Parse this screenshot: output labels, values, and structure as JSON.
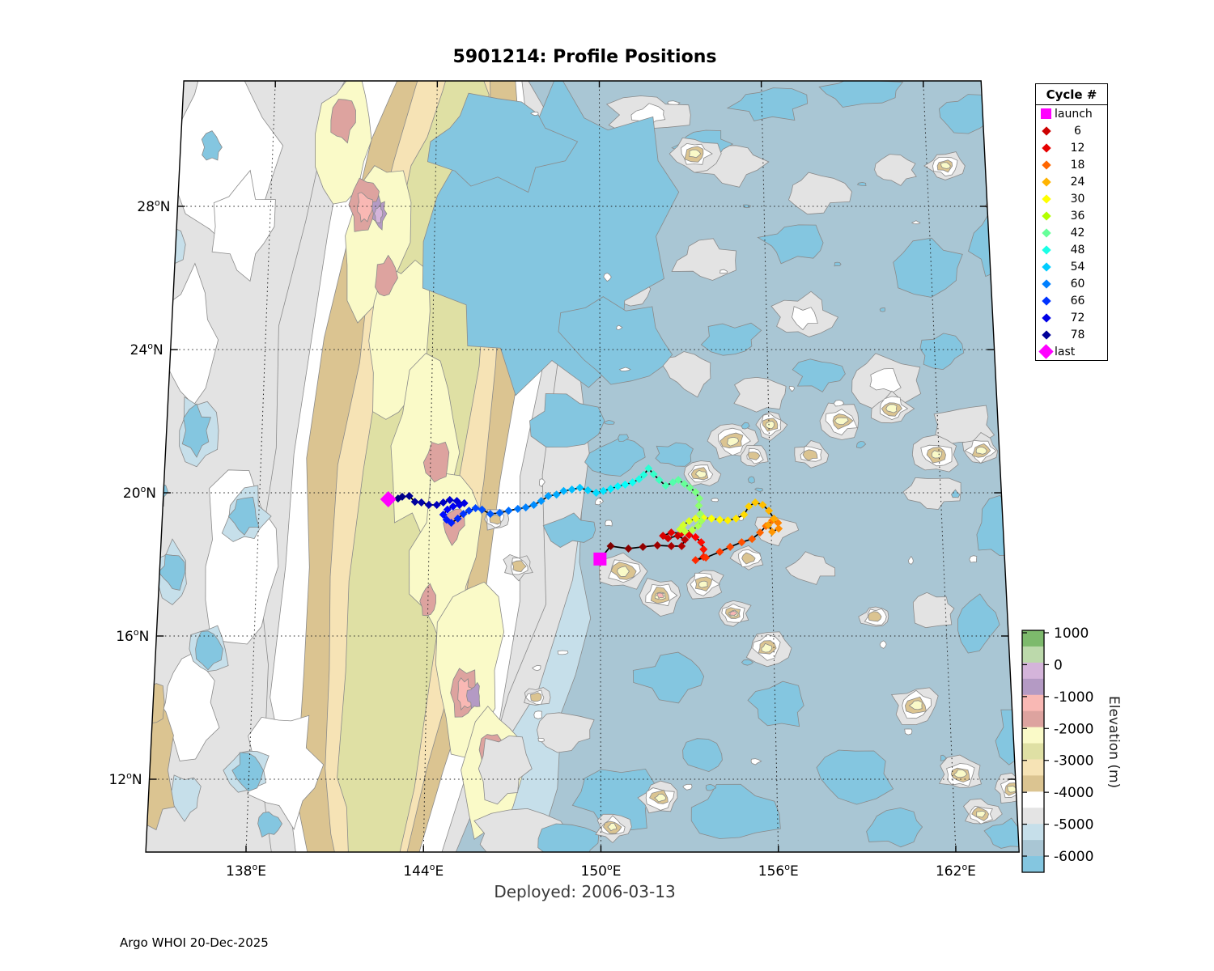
{
  "title": "5901214: Profile Positions",
  "deployed": "Deployed: 2006-03-13",
  "credit": "Argo WHOI 20-Dec-2025",
  "axes": {
    "lon_ticks": [
      {
        "deg": 138,
        "label": "138",
        "hemi": "E"
      },
      {
        "deg": 144,
        "label": "144",
        "hemi": "E"
      },
      {
        "deg": 150,
        "label": "150",
        "hemi": "E"
      },
      {
        "deg": 156,
        "label": "156",
        "hemi": "E"
      },
      {
        "deg": 162,
        "label": "162",
        "hemi": "E"
      }
    ],
    "lat_ticks": [
      {
        "deg": 28,
        "label": "28",
        "hemi": "N"
      },
      {
        "deg": 24,
        "label": "24",
        "hemi": "N"
      },
      {
        "deg": 20,
        "label": "20",
        "hemi": "N"
      },
      {
        "deg": 16,
        "label": "16",
        "hemi": "N"
      },
      {
        "deg": 12,
        "label": "12",
        "hemi": "N"
      }
    ]
  },
  "legend": {
    "title": "Cycle #",
    "entries": [
      {
        "label": "launch",
        "marker": "square",
        "color": "#ff00ff"
      },
      {
        "label": "6",
        "marker": "diamond",
        "color": "#cc0000"
      },
      {
        "label": "12",
        "marker": "diamond",
        "color": "#e60000"
      },
      {
        "label": "18",
        "marker": "diamond",
        "color": "#ff6600"
      },
      {
        "label": "24",
        "marker": "diamond",
        "color": "#ffb300"
      },
      {
        "label": "30",
        "marker": "diamond",
        "color": "#ffff00"
      },
      {
        "label": "36",
        "marker": "diamond",
        "color": "#b3ff00"
      },
      {
        "label": "42",
        "marker": "diamond",
        "color": "#66ff99"
      },
      {
        "label": "48",
        "marker": "diamond",
        "color": "#1affe5"
      },
      {
        "label": "54",
        "marker": "diamond",
        "color": "#00ccff"
      },
      {
        "label": "60",
        "marker": "diamond",
        "color": "#0080ff"
      },
      {
        "label": "66",
        "marker": "diamond",
        "color": "#0033ff"
      },
      {
        "label": "72",
        "marker": "diamond",
        "color": "#0000e6"
      },
      {
        "label": "78",
        "marker": "diamond",
        "color": "#000099"
      },
      {
        "label": "last",
        "marker": "diamond-large",
        "color": "#ff00ff"
      }
    ]
  },
  "colorbar": {
    "label": "Elevation (m)",
    "tick_labels": [
      "1000",
      "0",
      "-1000",
      "-2000",
      "-3000",
      "-4000",
      "-5000",
      "-6000"
    ],
    "segment_colors": [
      "#7dba6c",
      "#bcd9ab",
      "#d4b4da",
      "#b49ac4",
      "#f9b8b4",
      "#dda39f",
      "#fafac8",
      "#dfe0a4",
      "#f6e3b5",
      "#dbc491",
      "#ffffff",
      "#e4e4e4",
      "#c6dfea",
      "#a9c6d4",
      "#84c6e0"
    ]
  },
  "chart_data": {
    "type": "map-trajectory",
    "float_id": "5901214",
    "deployed_date": "2006-03-13",
    "lon_range": [
      134.6,
      164.1
    ],
    "lat_range": [
      10.0,
      31.5
    ],
    "grid_lons": [
      138,
      144,
      150,
      156,
      162
    ],
    "grid_lats": [
      12,
      16,
      20,
      24,
      28
    ],
    "launch": {
      "lon": 149.97,
      "lat": 18.15
    },
    "last": {
      "lon": 142.81,
      "lat": 19.82
    },
    "marker_colormap": "jet-reversed",
    "track": [
      [
        150.33,
        18.51
      ],
      [
        150.93,
        18.44
      ],
      [
        151.42,
        18.49
      ],
      [
        151.91,
        18.53
      ],
      [
        152.38,
        18.51
      ],
      [
        152.73,
        18.51
      ],
      [
        152.84,
        18.69
      ],
      [
        152.6,
        18.8
      ],
      [
        152.27,
        18.73
      ],
      [
        152.1,
        18.8
      ],
      [
        152.38,
        18.89
      ],
      [
        152.73,
        18.87
      ],
      [
        152.98,
        18.82
      ],
      [
        153.2,
        18.76
      ],
      [
        153.39,
        18.62
      ],
      [
        153.47,
        18.42
      ],
      [
        153.47,
        18.21
      ],
      [
        153.2,
        18.12
      ],
      [
        153.55,
        18.19
      ],
      [
        154.02,
        18.35
      ],
      [
        154.37,
        18.49
      ],
      [
        154.76,
        18.62
      ],
      [
        155.11,
        18.71
      ],
      [
        155.38,
        18.89
      ],
      [
        155.58,
        19.07
      ],
      [
        155.79,
        19.23
      ],
      [
        155.99,
        19.16
      ],
      [
        156.01,
        19.0
      ],
      [
        155.79,
        18.91
      ],
      [
        155.66,
        19.1
      ],
      [
        155.85,
        19.28
      ],
      [
        155.68,
        19.5
      ],
      [
        155.47,
        19.66
      ],
      [
        155.22,
        19.73
      ],
      [
        155.0,
        19.62
      ],
      [
        154.84,
        19.39
      ],
      [
        154.57,
        19.28
      ],
      [
        154.29,
        19.23
      ],
      [
        154.02,
        19.25
      ],
      [
        153.74,
        19.28
      ],
      [
        153.47,
        19.3
      ],
      [
        153.2,
        19.28
      ],
      [
        152.98,
        19.21
      ],
      [
        152.79,
        19.1
      ],
      [
        152.68,
        18.98
      ],
      [
        152.84,
        18.92
      ],
      [
        153.09,
        18.96
      ],
      [
        153.28,
        19.07
      ],
      [
        153.39,
        19.21
      ],
      [
        153.36,
        19.41
      ],
      [
        153.31,
        19.64
      ],
      [
        153.33,
        19.84
      ],
      [
        153.2,
        20.02
      ],
      [
        153.01,
        20.14
      ],
      [
        152.82,
        20.25
      ],
      [
        152.62,
        20.36
      ],
      [
        152.43,
        20.29
      ],
      [
        152.19,
        20.2
      ],
      [
        151.97,
        20.36
      ],
      [
        151.78,
        20.52
      ],
      [
        151.61,
        20.68
      ],
      [
        151.45,
        20.5
      ],
      [
        151.29,
        20.38
      ],
      [
        151.07,
        20.29
      ],
      [
        150.82,
        20.23
      ],
      [
        150.57,
        20.18
      ],
      [
        150.33,
        20.11
      ],
      [
        150.08,
        20.05
      ],
      [
        149.84,
        20.0
      ],
      [
        149.56,
        20.07
      ],
      [
        149.29,
        20.14
      ],
      [
        149.02,
        20.09
      ],
      [
        148.74,
        20.05
      ],
      [
        148.5,
        19.95
      ],
      [
        148.22,
        19.91
      ],
      [
        147.98,
        19.77
      ],
      [
        147.73,
        19.66
      ],
      [
        147.46,
        19.59
      ],
      [
        147.19,
        19.55
      ],
      [
        146.88,
        19.5
      ],
      [
        146.58,
        19.44
      ],
      [
        146.26,
        19.41
      ],
      [
        145.98,
        19.53
      ],
      [
        145.76,
        19.57
      ],
      [
        145.54,
        19.5
      ],
      [
        145.35,
        19.41
      ],
      [
        145.16,
        19.28
      ],
      [
        144.94,
        19.16
      ],
      [
        144.78,
        19.25
      ],
      [
        144.67,
        19.39
      ],
      [
        144.81,
        19.53
      ],
      [
        145.0,
        19.62
      ],
      [
        145.22,
        19.66
      ],
      [
        145.38,
        19.71
      ],
      [
        145.13,
        19.77
      ],
      [
        144.89,
        19.8
      ],
      [
        144.67,
        19.73
      ],
      [
        144.45,
        19.66
      ],
      [
        144.18,
        19.66
      ],
      [
        143.93,
        19.73
      ],
      [
        143.71,
        19.75
      ],
      [
        143.52,
        19.91
      ],
      [
        143.28,
        19.89
      ],
      [
        143.14,
        19.84
      ]
    ]
  }
}
